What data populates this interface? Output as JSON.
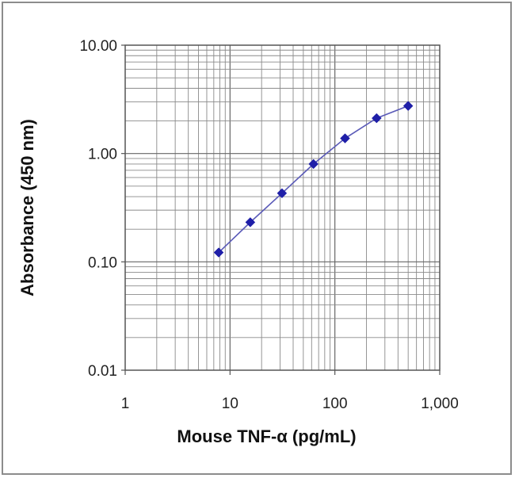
{
  "chart_data": {
    "type": "scatter",
    "xlabel": "Mouse TNF-α (pg/mL)",
    "ylabel": "Absorbance (450 nm)",
    "x_scale": "log",
    "y_scale": "log",
    "xlim": [
      1,
      1000
    ],
    "ylim": [
      0.01,
      10
    ],
    "x_ticks": [
      "1",
      "10",
      "100",
      "1,000"
    ],
    "y_ticks": [
      "0.01",
      "0.10",
      "1.00",
      "10.00"
    ],
    "grid": true,
    "series": [
      {
        "x": [
          7.8,
          15.6,
          31.3,
          62.5,
          125,
          250,
          500
        ],
        "y": [
          0.122,
          0.232,
          0.43,
          0.8,
          1.38,
          2.12,
          2.75
        ],
        "color": "#1f1fa8",
        "line_color": "#5a5ab8",
        "marker": "diamond"
      }
    ]
  }
}
